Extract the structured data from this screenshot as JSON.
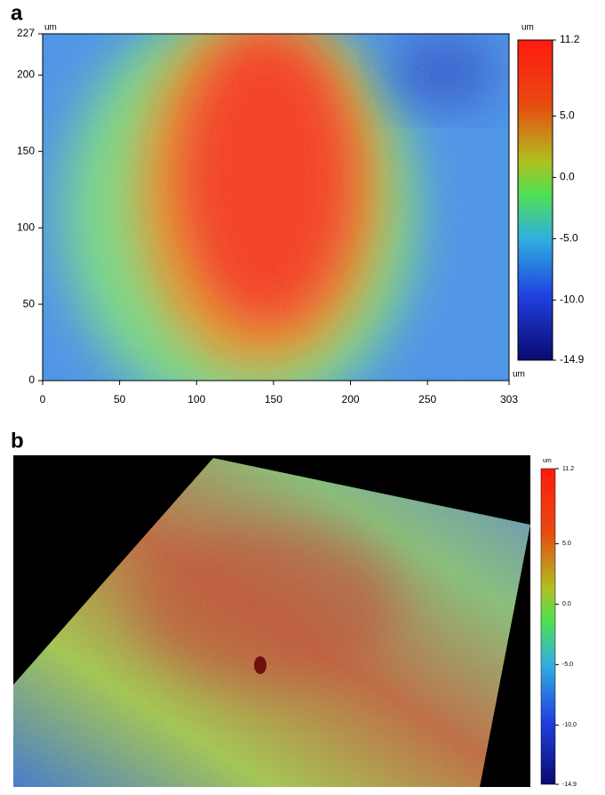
{
  "panel_a": {
    "label": "a",
    "x_unit": "um",
    "y_unit": "um",
    "xlim": [
      0,
      303
    ],
    "ylim": [
      0,
      227
    ],
    "xticks": [
      0,
      50,
      100,
      150,
      200,
      250,
      303
    ],
    "yticks": [
      0,
      50,
      100,
      150,
      200,
      227
    ],
    "colorbar": {
      "unit_top": "um",
      "unit_bottom": "um",
      "lim": [
        -14.9,
        11.2
      ],
      "ticks": [
        11.2,
        {
          "value": 5,
          "label": "5.0"
        },
        {
          "value": 0,
          "label": "0.0"
        },
        {
          "value": -5,
          "label": "-5.0"
        },
        {
          "value": -10,
          "label": "-10.0"
        },
        -14.9
      ]
    }
  },
  "panel_b": {
    "label": "b",
    "colorbar": {
      "unit_top": "um",
      "lim": [
        -14.9,
        11.2
      ],
      "ticks": [
        11.2,
        {
          "value": 5,
          "label": "5.0"
        },
        {
          "value": 0,
          "label": "0.0"
        },
        {
          "value": -5,
          "label": "-5.0"
        },
        {
          "value": -10,
          "label": "-10.0"
        },
        -14.9
      ]
    }
  }
}
